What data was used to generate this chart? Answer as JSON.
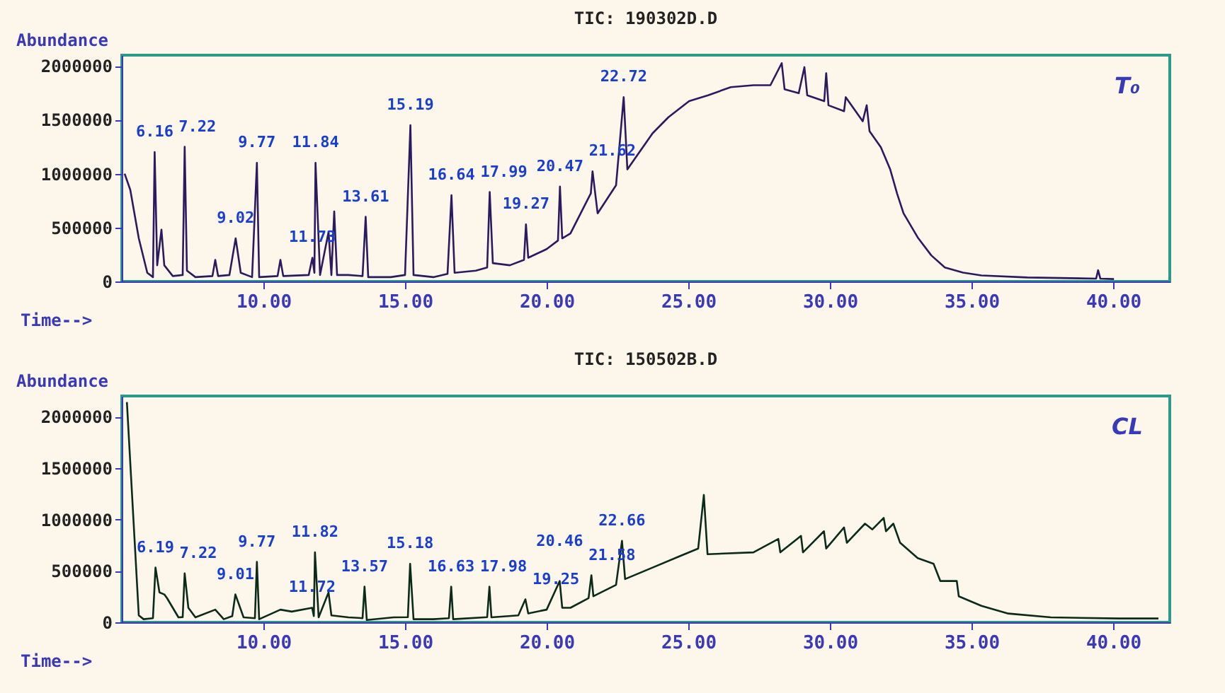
{
  "chart_data": [
    {
      "type": "line",
      "title": "TIC: 190302D.D",
      "xlabel": "Time-->",
      "ylabel": "Abundance",
      "xlim": [
        5,
        42
      ],
      "ylim": [
        0,
        2100000
      ],
      "xticks": [
        {
          "value": 10,
          "label": "10.00"
        },
        {
          "value": 15,
          "label": "15.00"
        },
        {
          "value": 20,
          "label": "20.00"
        },
        {
          "value": 25,
          "label": "25.00"
        },
        {
          "value": 30,
          "label": "30.00"
        },
        {
          "value": 35,
          "label": "35.00"
        },
        {
          "value": 40,
          "label": "40.00"
        }
      ],
      "yticks": [
        0,
        500000,
        1000000,
        1500000,
        2000000
      ],
      "grid": false,
      "legend": false,
      "series": [
        {
          "color": "#2a1a5e",
          "x": [
            5.1,
            5.3,
            5.6,
            5.9,
            6.1,
            6.16,
            6.25,
            6.4,
            6.5,
            6.8,
            7.15,
            7.22,
            7.3,
            7.6,
            8.2,
            8.3,
            8.4,
            8.8,
            9.02,
            9.2,
            9.6,
            9.77,
            9.85,
            10.5,
            10.6,
            10.7,
            11.6,
            11.73,
            11.8,
            11.84,
            12.0,
            12.3,
            12.4,
            12.5,
            12.6,
            13.0,
            13.5,
            13.61,
            13.7,
            14.5,
            15.0,
            15.19,
            15.3,
            16.0,
            16.5,
            16.64,
            16.75,
            17.5,
            17.9,
            17.99,
            18.1,
            18.7,
            19.2,
            19.27,
            19.35,
            20.0,
            20.4,
            20.47,
            20.55,
            20.84,
            21.56,
            21.62,
            21.8,
            22.45,
            22.72,
            22.85,
            23.74,
            24.3,
            25.03,
            25.7,
            26.5,
            27.3,
            27.9,
            28.3,
            28.4,
            28.9,
            29.1,
            29.2,
            29.8,
            29.87,
            29.95,
            30.5,
            30.56,
            31.16,
            31.3,
            31.4,
            31.8,
            32.13,
            32.37,
            32.6,
            33.1,
            33.58,
            34.06,
            34.7,
            35.35,
            36.97,
            39.4,
            39.47,
            39.55,
            40.03
          ],
          "values": [
            1000000,
            850000,
            400000,
            80000,
            40000,
            1200000,
            150000,
            480000,
            150000,
            50000,
            60000,
            1250000,
            100000,
            40000,
            50000,
            200000,
            50000,
            60000,
            400000,
            80000,
            40000,
            1100000,
            40000,
            50000,
            200000,
            50000,
            60000,
            220000,
            80000,
            1100000,
            60000,
            460000,
            60000,
            650000,
            60000,
            60000,
            50000,
            600000,
            40000,
            40000,
            60000,
            1450000,
            60000,
            40000,
            70000,
            800000,
            80000,
            100000,
            130000,
            830000,
            170000,
            150000,
            200000,
            530000,
            220000,
            300000,
            380000,
            880000,
            400000,
            446000,
            818000,
            1022000,
            632000,
            892000,
            1710000,
            1040000,
            1375000,
            1524000,
            1673000,
            1728000,
            1803000,
            1821000,
            1821000,
            2026000,
            1784000,
            1747000,
            1989000,
            1728000,
            1673000,
            1933000,
            1635000,
            1580000,
            1710000,
            1487000,
            1635000,
            1394000,
            1245000,
            1040000,
            818000,
            632000,
            409000,
            242000,
            130000,
            82000,
            56000,
            37000,
            26000,
            104000,
            26000,
            22000
          ]
        }
      ],
      "annotations": [
        "T₀",
        {
          "text": "6.16",
          "x": 6.16,
          "y": 1200000
        },
        {
          "text": "7.22",
          "x": 7.22,
          "y": 1250000
        },
        {
          "text": "9.02",
          "x": 9.02,
          "y": 400000
        },
        {
          "text": "9.77",
          "x": 9.77,
          "y": 1100000
        },
        {
          "text": "11.73",
          "x": 11.73,
          "y": 220000
        },
        {
          "text": "11.84",
          "x": 11.84,
          "y": 1100000
        },
        {
          "text": "13.61",
          "x": 13.61,
          "y": 600000
        },
        {
          "text": "15.19",
          "x": 15.19,
          "y": 1450000
        },
        {
          "text": "16.64",
          "x": 16.64,
          "y": 800000
        },
        {
          "text": "17.99",
          "x": 17.99,
          "y": 830000
        },
        {
          "text": "19.27",
          "x": 19.27,
          "y": 530000
        },
        {
          "text": "20.47",
          "x": 20.47,
          "y": 880000
        },
        {
          "text": "21.62",
          "x": 21.62,
          "y": 1022000
        },
        {
          "text": "22.72",
          "x": 22.72,
          "y": 1710000
        }
      ]
    },
    {
      "type": "line",
      "title": "TIC: 150502B.D",
      "xlabel": "Time-->",
      "ylabel": "Abundance",
      "xlim": [
        5,
        42
      ],
      "ylim": [
        0,
        2200000
      ],
      "xticks": [
        {
          "value": 10,
          "label": "10.00"
        },
        {
          "value": 15,
          "label": "15.00"
        },
        {
          "value": 20,
          "label": "20.00"
        },
        {
          "value": 25,
          "label": "25.00"
        },
        {
          "value": 30,
          "label": "30.00"
        },
        {
          "value": 35,
          "label": "35.00"
        },
        {
          "value": 40,
          "label": "40.00"
        }
      ],
      "yticks": [
        0,
        500000,
        1000000,
        1500000,
        2000000
      ],
      "grid": false,
      "legend": false,
      "series": [
        {
          "color": "#0b2a1a",
          "x": [
            5.18,
            5.6,
            5.77,
            6.1,
            6.19,
            6.33,
            6.5,
            6.6,
            7.0,
            7.15,
            7.22,
            7.35,
            7.6,
            8.3,
            8.6,
            8.9,
            9.01,
            9.3,
            9.7,
            9.77,
            9.85,
            10.6,
            11.0,
            11.72,
            11.78,
            11.82,
            11.95,
            12.3,
            12.4,
            13.0,
            13.5,
            13.57,
            13.65,
            14.6,
            15.1,
            15.18,
            15.3,
            16.0,
            16.55,
            16.63,
            16.7,
            17.9,
            17.98,
            18.05,
            19.0,
            19.25,
            19.35,
            20.0,
            20.46,
            20.55,
            20.84,
            21.48,
            21.58,
            21.65,
            22.45,
            22.66,
            22.77,
            23.74,
            24.7,
            25.35,
            25.55,
            25.68,
            27.3,
            28.18,
            28.25,
            28.98,
            29.05,
            29.79,
            29.87,
            30.5,
            30.6,
            31.24,
            31.5,
            31.9,
            31.98,
            32.24,
            32.48,
            33.1,
            33.66,
            33.9,
            34.48,
            34.55,
            35.35,
            36.3,
            37.8,
            40.2,
            41.6
          ],
          "values": [
            2141000,
            67000,
            30000,
            40000,
            532000,
            290000,
            271000,
            234000,
            48000,
            50000,
            476000,
            141000,
            48000,
            123000,
            30000,
            60000,
            271000,
            48000,
            40000,
            587000,
            30000,
            123000,
            104000,
            141000,
            60000,
            680000,
            48000,
            290000,
            67000,
            48000,
            40000,
            346000,
            22000,
            48000,
            50000,
            569000,
            30000,
            30000,
            40000,
            346000,
            30000,
            50000,
            346000,
            48000,
            67000,
            223000,
            86000,
            123000,
            401000,
            141000,
            141000,
            234000,
            457000,
            253000,
            364000,
            792000,
            420000,
            532000,
            643000,
            717000,
            1238000,
            662000,
            680000,
            810000,
            680000,
            840000,
            680000,
            885000,
            717000,
            922000,
            773000,
            959000,
            903000,
            1015000,
            885000,
            959000,
            773000,
            624000,
            569000,
            401000,
            401000,
            253000,
            160000,
            85000,
            48000,
            37000,
            37000
          ]
        }
      ],
      "annotations": [
        "CL",
        {
          "text": "6.19",
          "x": 6.19,
          "y": 532000
        },
        {
          "text": "7.22",
          "x": 7.22,
          "y": 476000
        },
        {
          "text": "9.01",
          "x": 9.01,
          "y": 271000
        },
        {
          "text": "9.77",
          "x": 9.77,
          "y": 587000
        },
        {
          "text": "11.72",
          "x": 11.72,
          "y": 141000
        },
        {
          "text": "11.82",
          "x": 11.82,
          "y": 680000
        },
        {
          "text": "13.57",
          "x": 13.57,
          "y": 346000
        },
        {
          "text": "15.18",
          "x": 15.18,
          "y": 569000
        },
        {
          "text": "16.63",
          "x": 16.63,
          "y": 346000
        },
        {
          "text": "17.98",
          "x": 17.98,
          "y": 346000
        },
        {
          "text": "19.25",
          "x": 19.25,
          "y": 223000
        },
        {
          "text": "20.46",
          "x": 20.46,
          "y": 401000
        },
        {
          "text": "21.58",
          "x": 21.58,
          "y": 457000
        },
        {
          "text": "22.66",
          "x": 22.66,
          "y": 792000
        }
      ]
    }
  ]
}
